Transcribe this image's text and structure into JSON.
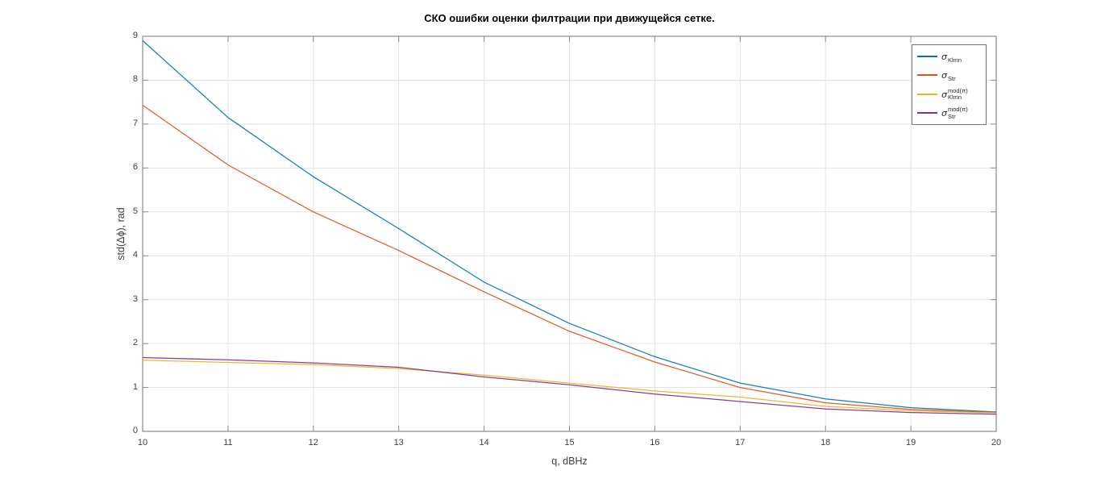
{
  "figure": {
    "background": "#ffffff",
    "title": "СКО ошибки оценки филтрации при движущейся сетке."
  },
  "chart_data": {
    "type": "line",
    "title": "СКО ошибки оценки филтрации при движущейся сетке.",
    "xlabel": "q, dBHz",
    "ylabel": "std(Δϕ), rad",
    "xlim": [
      10,
      20
    ],
    "ylim": [
      0,
      9
    ],
    "xticks": [
      10,
      11,
      12,
      13,
      14,
      15,
      16,
      17,
      18,
      19,
      20
    ],
    "yticks": [
      0,
      1,
      2,
      3,
      4,
      5,
      6,
      7,
      8,
      9
    ],
    "grid": true,
    "legend_position": "top-right",
    "x": [
      10,
      11,
      12,
      13,
      14,
      15,
      16,
      17,
      18,
      19,
      20
    ],
    "series": [
      {
        "name": "sigma_Klmn",
        "label_main": "σ",
        "label_sup": "",
        "label_sub": "Klmn",
        "color": "#0072BD",
        "values": [
          8.9,
          7.15,
          5.8,
          4.62,
          3.4,
          2.46,
          1.7,
          1.1,
          0.74,
          0.54,
          0.44
        ]
      },
      {
        "name": "sigma_Str",
        "label_main": "σ",
        "label_sup": "",
        "label_sub": "Str",
        "color": "#D95319",
        "values": [
          7.43,
          6.07,
          5.0,
          4.12,
          3.18,
          2.28,
          1.58,
          1.0,
          0.65,
          0.5,
          0.43
        ]
      },
      {
        "name": "sigma_Klmn_mod_pi",
        "label_main": "σ",
        "label_sup": "mod(π)",
        "label_sub": "Klmn",
        "color": "#EDB120",
        "values": [
          1.62,
          1.57,
          1.52,
          1.43,
          1.28,
          1.1,
          0.92,
          0.78,
          0.57,
          0.47,
          0.42
        ]
      },
      {
        "name": "sigma_Str_mod_pi",
        "label_main": "σ",
        "label_sup": "mod(π)",
        "label_sub": "Str",
        "color": "#7E2F8E",
        "values": [
          1.68,
          1.63,
          1.56,
          1.46,
          1.24,
          1.06,
          0.85,
          0.68,
          0.51,
          0.43,
          0.39
        ]
      }
    ],
    "styles": {
      "axis_color": "#8c8c8c",
      "grid_color": "#e3e3e3",
      "tick_label_color": "#3f3f3f",
      "title_color": "#000000",
      "legend_border_color": "#767676"
    }
  }
}
